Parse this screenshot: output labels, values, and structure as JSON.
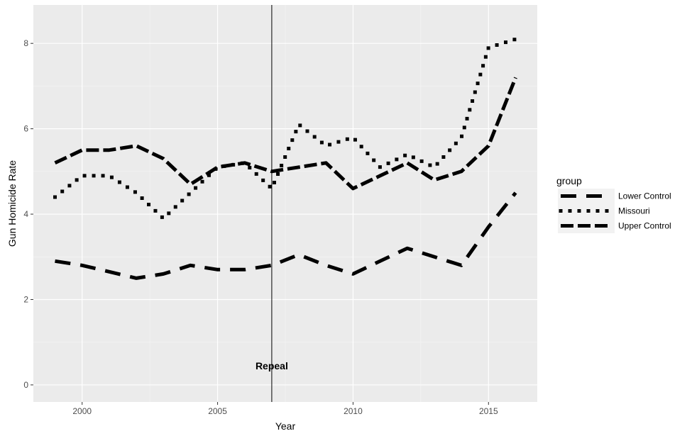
{
  "chart_data": {
    "type": "line",
    "title": "",
    "xlabel": "Year",
    "ylabel": "Gun Homicide Rate",
    "xlim": [
      1998.2,
      2016.8
    ],
    "ylim": [
      -0.4,
      8.9
    ],
    "x_ticks": [
      2000,
      2005,
      2010,
      2015
    ],
    "y_ticks": [
      0,
      2,
      4,
      6,
      8
    ],
    "x_tick_labels": [
      "2000",
      "2005",
      "2010",
      "2015"
    ],
    "y_tick_labels": [
      "0",
      "2",
      "4",
      "6",
      "8"
    ],
    "grid": true,
    "panel_background": "#ebebeb",
    "grid_color": "#ffffff",
    "line_color": "#000000",
    "legend": {
      "title": "group",
      "position": "right",
      "entries": [
        "Lower Control",
        "Missouri",
        "Upper Control"
      ]
    },
    "vline": {
      "x": 2007,
      "color": "#000000"
    },
    "annotation": {
      "text": "Repeal",
      "x": 2007,
      "y": 0.45
    },
    "x": [
      1999,
      2000,
      2001,
      2002,
      2003,
      2004,
      2005,
      2006,
      2007,
      2008,
      2009,
      2010,
      2011,
      2012,
      2013,
      2014,
      2015,
      2016
    ],
    "series": [
      {
        "name": "Lower Control",
        "dash": "long",
        "values": [
          2.9,
          2.8,
          2.65,
          2.5,
          2.6,
          2.8,
          2.7,
          2.7,
          2.8,
          3.05,
          2.8,
          2.6,
          2.9,
          3.2,
          3.0,
          2.8,
          3.7,
          4.5
        ]
      },
      {
        "name": "Missouri",
        "dash": "dotted",
        "values": [
          4.4,
          4.9,
          4.9,
          4.5,
          3.9,
          4.5,
          5.1,
          5.2,
          4.6,
          6.1,
          5.6,
          5.8,
          5.1,
          5.4,
          5.1,
          5.8,
          7.9,
          8.1
        ]
      },
      {
        "name": "Upper Control",
        "dash": "medium",
        "values": [
          5.2,
          5.5,
          5.5,
          5.6,
          5.3,
          4.7,
          5.1,
          5.2,
          5.0,
          5.1,
          5.2,
          4.6,
          4.9,
          5.2,
          4.8,
          5.0,
          5.6,
          7.2
        ]
      }
    ]
  }
}
